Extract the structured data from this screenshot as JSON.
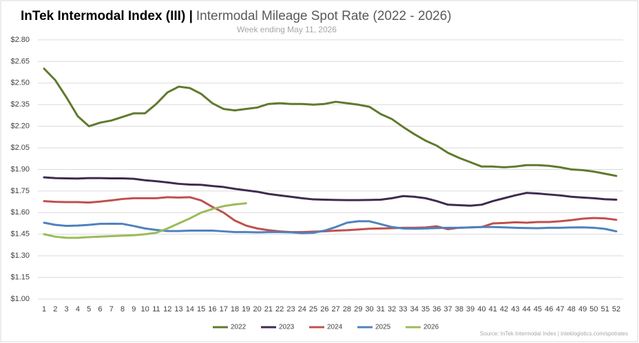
{
  "chart_data": {
    "type": "line",
    "title": "InTek Intermodal Index (III) |",
    "subtitle": "Intermodal Mileage Spot Rate (2022 - 2026)",
    "date_note": "Week ending May 11, 2026",
    "source": "Source: InTek Intermodal Index | inteklogistics.com/spotrates",
    "categories": [
      1,
      2,
      3,
      4,
      5,
      6,
      7,
      8,
      9,
      10,
      11,
      12,
      13,
      14,
      15,
      16,
      17,
      18,
      19,
      20,
      21,
      22,
      23,
      24,
      25,
      26,
      27,
      28,
      29,
      30,
      31,
      32,
      33,
      34,
      35,
      36,
      37,
      38,
      39,
      40,
      41,
      42,
      43,
      44,
      45,
      46,
      47,
      48,
      49,
      50,
      51,
      52
    ],
    "ylim": [
      1.0,
      2.8
    ],
    "yticks": [
      {
        "value": 1.0,
        "label": "$1.00"
      },
      {
        "value": 1.15,
        "label": "$1.15"
      },
      {
        "value": 1.3,
        "label": "$1.30"
      },
      {
        "value": 1.45,
        "label": "$1.45"
      },
      {
        "value": 1.6,
        "label": "$1.60"
      },
      {
        "value": 1.75,
        "label": "$1.75"
      },
      {
        "value": 1.9,
        "label": "$1.90"
      },
      {
        "value": 2.05,
        "label": "$2.05"
      },
      {
        "value": 2.2,
        "label": "$2.20"
      },
      {
        "value": 2.35,
        "label": "$2.35"
      },
      {
        "value": 2.5,
        "label": "$2.50"
      },
      {
        "value": 2.65,
        "label": "$2.65"
      },
      {
        "value": 2.8,
        "label": "$2.80"
      }
    ],
    "grid": true,
    "legend": "bottom",
    "series": [
      {
        "name": "2022",
        "color": "#5f7a2c",
        "values": [
          2.6,
          2.52,
          2.4,
          2.27,
          2.2,
          2.225,
          2.24,
          2.265,
          2.29,
          2.29,
          2.355,
          2.435,
          2.475,
          2.465,
          2.425,
          2.36,
          2.32,
          2.31,
          2.32,
          2.33,
          2.355,
          2.36,
          2.355,
          2.355,
          2.35,
          2.355,
          2.37,
          2.36,
          2.35,
          2.335,
          2.285,
          2.25,
          2.195,
          2.145,
          2.1,
          2.065,
          2.015,
          1.98,
          1.95,
          1.92,
          1.92,
          1.915,
          1.92,
          1.93,
          1.93,
          1.925,
          1.915,
          1.9,
          1.895,
          1.885,
          1.87,
          1.855
        ]
      },
      {
        "name": "2023",
        "color": "#3e2b4f",
        "values": [
          1.845,
          1.84,
          1.838,
          1.837,
          1.84,
          1.84,
          1.838,
          1.838,
          1.835,
          1.825,
          1.818,
          1.81,
          1.8,
          1.795,
          1.793,
          1.785,
          1.778,
          1.765,
          1.755,
          1.745,
          1.73,
          1.72,
          1.71,
          1.7,
          1.692,
          1.69,
          1.688,
          1.687,
          1.687,
          1.688,
          1.69,
          1.7,
          1.715,
          1.71,
          1.7,
          1.68,
          1.655,
          1.652,
          1.648,
          1.655,
          1.68,
          1.7,
          1.72,
          1.737,
          1.733,
          1.726,
          1.72,
          1.71,
          1.705,
          1.7,
          1.693,
          1.69
        ]
      },
      {
        "name": "2024",
        "color": "#c0504d",
        "values": [
          1.68,
          1.675,
          1.673,
          1.673,
          1.67,
          1.677,
          1.685,
          1.695,
          1.7,
          1.7,
          1.7,
          1.707,
          1.705,
          1.707,
          1.685,
          1.64,
          1.6,
          1.545,
          1.51,
          1.49,
          1.478,
          1.47,
          1.465,
          1.465,
          1.468,
          1.47,
          1.475,
          1.478,
          1.483,
          1.488,
          1.49,
          1.492,
          1.495,
          1.495,
          1.497,
          1.505,
          1.485,
          1.495,
          1.498,
          1.5,
          1.525,
          1.528,
          1.533,
          1.53,
          1.535,
          1.535,
          1.54,
          1.548,
          1.558,
          1.563,
          1.56,
          1.55
        ]
      },
      {
        "name": "2025",
        "color": "#4f81bd",
        "values": [
          1.53,
          1.515,
          1.508,
          1.51,
          1.515,
          1.522,
          1.523,
          1.522,
          1.507,
          1.49,
          1.48,
          1.472,
          1.472,
          1.475,
          1.475,
          1.475,
          1.47,
          1.465,
          1.465,
          1.463,
          1.465,
          1.465,
          1.463,
          1.458,
          1.46,
          1.475,
          1.5,
          1.53,
          1.54,
          1.54,
          1.52,
          1.5,
          1.49,
          1.488,
          1.49,
          1.493,
          1.495,
          1.495,
          1.497,
          1.5,
          1.5,
          1.498,
          1.495,
          1.493,
          1.492,
          1.495,
          1.495,
          1.497,
          1.498,
          1.495,
          1.487,
          1.47
        ]
      },
      {
        "name": "2026",
        "color": "#9bbb59",
        "values": [
          1.45,
          1.433,
          1.425,
          1.425,
          1.43,
          1.433,
          1.437,
          1.44,
          1.443,
          1.45,
          1.46,
          1.49,
          1.525,
          1.56,
          1.6,
          1.625,
          1.645,
          1.657,
          1.665,
          null,
          null,
          null,
          null,
          null,
          null,
          null,
          null,
          null,
          null,
          null,
          null,
          null,
          null,
          null,
          null,
          null,
          null,
          null,
          null,
          null,
          null,
          null,
          null,
          null,
          null,
          null,
          null,
          null,
          null,
          null,
          null,
          null
        ]
      }
    ]
  }
}
